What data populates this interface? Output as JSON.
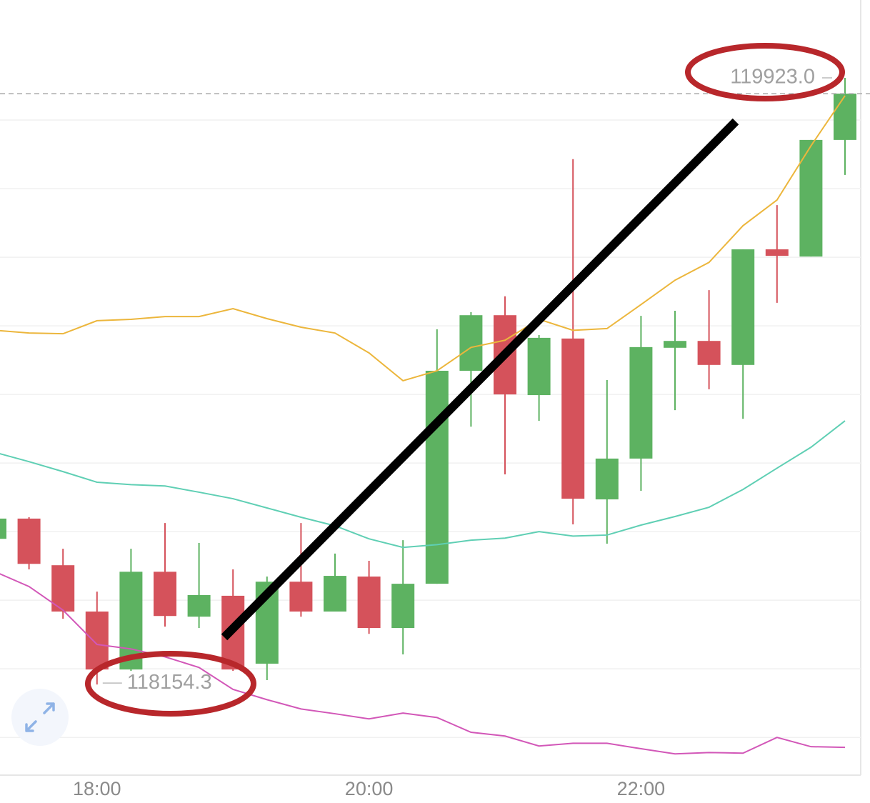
{
  "chart_data": {
    "type": "candlestick",
    "categories": [
      null,
      null,
      null,
      "18:00",
      null,
      null,
      null,
      null,
      null,
      null,
      null,
      "20:00",
      null,
      null,
      null,
      null,
      null,
      null,
      null,
      "22:00",
      null,
      null,
      null,
      null,
      null,
      null
    ],
    "open": [
      118579,
      118638,
      118502,
      118367,
      118198,
      118483,
      118352,
      118413,
      118215,
      118454,
      118367,
      118469,
      118319,
      118448,
      119069,
      119231,
      118998,
      119163,
      118694,
      118813,
      119136,
      119156,
      119086,
      119423,
      119402,
      119742
    ],
    "high": [
      118645,
      118642,
      118550,
      118425,
      118550,
      118625,
      118567,
      118490,
      118469,
      118625,
      118536,
      118515,
      118575,
      119190,
      119240,
      119286,
      119173,
      119686,
      119042,
      119229,
      119244,
      119304,
      119423,
      119552,
      119742,
      119923.0
    ],
    "low": [
      118570,
      118490,
      118346,
      118154.3,
      118194,
      118323,
      118319,
      118194,
      118167,
      118352,
      118367,
      118302,
      118242,
      118448,
      118906,
      118767,
      118923,
      118621,
      118565,
      118719,
      118954,
      119015,
      118929,
      119267,
      119402,
      119640
    ],
    "close": [
      118638,
      118506,
      118367,
      118198,
      118483,
      118354,
      118415,
      118198,
      118454,
      118367,
      118471,
      118319,
      118448,
      119069,
      119231,
      119000,
      119165,
      118696,
      118813,
      119138,
      119156,
      119086,
      119423,
      119404,
      119742,
      119877
    ],
    "up_color": "#5db261",
    "down_color": "#d5525b",
    "lines": [
      {
        "color": "#ecb63c",
        "values": [
          119187,
          119179,
          119177,
          119215,
          119219,
          119227,
          119227,
          119250,
          119221,
          119196,
          119179,
          119121,
          119040,
          119069,
          119137,
          119158,
          119219,
          119187,
          119192,
          119262,
          119333,
          119385,
          119492,
          119567,
          119725,
          119871
        ]
      },
      {
        "color": "#5fcfb4",
        "values": [
          118831,
          118804,
          118775,
          118744,
          118737,
          118733,
          118715,
          118696,
          118669,
          118642,
          118617,
          118579,
          118554,
          118562,
          118575,
          118581,
          118600,
          118587,
          118590,
          118619,
          118644,
          118671,
          118723,
          118785,
          118846,
          118923
        ]
      },
      {
        "color": "#d257b8",
        "values": [
          118483,
          118440,
          118371,
          118271,
          118258,
          118235,
          118204,
          118140,
          118110,
          118083,
          118069,
          118054,
          118071,
          118058,
          118015,
          118004,
          117975,
          117983,
          117983,
          117967,
          117952,
          117956,
          117954,
          118000,
          117973,
          117971
        ]
      }
    ],
    "ylim": [
      117890,
      120150
    ],
    "yticks": [
      118000,
      118200,
      118400,
      118600,
      118800,
      119000,
      119200,
      119400,
      119600,
      119800
    ],
    "grid": true,
    "max_label": "119923.0",
    "min_label": "118154.3"
  }
}
